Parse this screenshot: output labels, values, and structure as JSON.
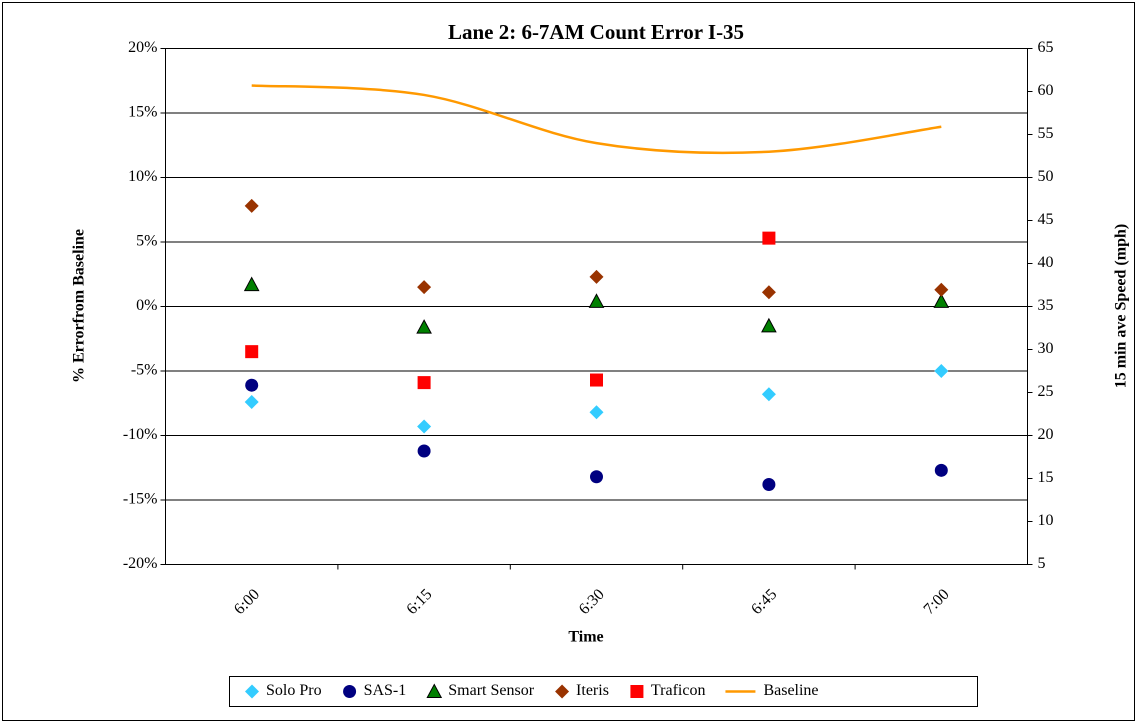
{
  "chart_data": {
    "type": "scatter",
    "title": "Lane 2: 6-7AM Count Error I-35",
    "xlabel": "Time",
    "ylabel": "% Errorfrom Baseline",
    "y2label": "15 min ave Speed (mph)",
    "categories": [
      "6:00",
      "6:15",
      "6:30",
      "6:45",
      "7:00"
    ],
    "series": [
      {
        "name": "Solo Pro",
        "color": "#33ccff",
        "marker": "diamond",
        "values": [
          -7.4,
          -9.3,
          -8.2,
          -6.8,
          -5.0
        ]
      },
      {
        "name": "SAS-1",
        "color": "#000080",
        "marker": "circle",
        "values": [
          -6.1,
          -11.2,
          -13.2,
          -13.8,
          -12.7
        ]
      },
      {
        "name": "Smart Sensor",
        "color": "#008000",
        "marker": "triangle",
        "values": [
          1.7,
          -1.6,
          0.4,
          -1.5,
          0.4
        ]
      },
      {
        "name": "Iteris",
        "color": "#993300",
        "marker": "diamond",
        "values": [
          7.8,
          1.5,
          2.3,
          1.1,
          1.3
        ]
      },
      {
        "name": "Traficon",
        "color": "#ff0000",
        "marker": "square",
        "values": [
          -3.5,
          -5.9,
          -5.7,
          5.3,
          null
        ]
      },
      {
        "name": "Baseline",
        "color": "#ff9900",
        "marker": "line",
        "axis": "y2",
        "values": [
          60.7,
          59.6,
          54.0,
          53.0,
          55.9
        ]
      }
    ],
    "ylim": [
      -20,
      20
    ],
    "yticks": [
      {
        "value": -20,
        "label": "-20%"
      },
      {
        "value": -15,
        "label": "-15%"
      },
      {
        "value": -10,
        "label": "-10%"
      },
      {
        "value": -5,
        "label": "-5%"
      },
      {
        "value": 0,
        "label": "0%"
      },
      {
        "value": 5,
        "label": "5%"
      },
      {
        "value": 10,
        "label": "10%"
      },
      {
        "value": 15,
        "label": "15%"
      },
      {
        "value": 20,
        "label": "20%"
      }
    ],
    "y2lim": [
      5,
      65
    ],
    "y2ticks": [
      5,
      10,
      15,
      20,
      25,
      30,
      35,
      40,
      45,
      50,
      55,
      60,
      65
    ],
    "grid": true,
    "legend": "bottom"
  }
}
